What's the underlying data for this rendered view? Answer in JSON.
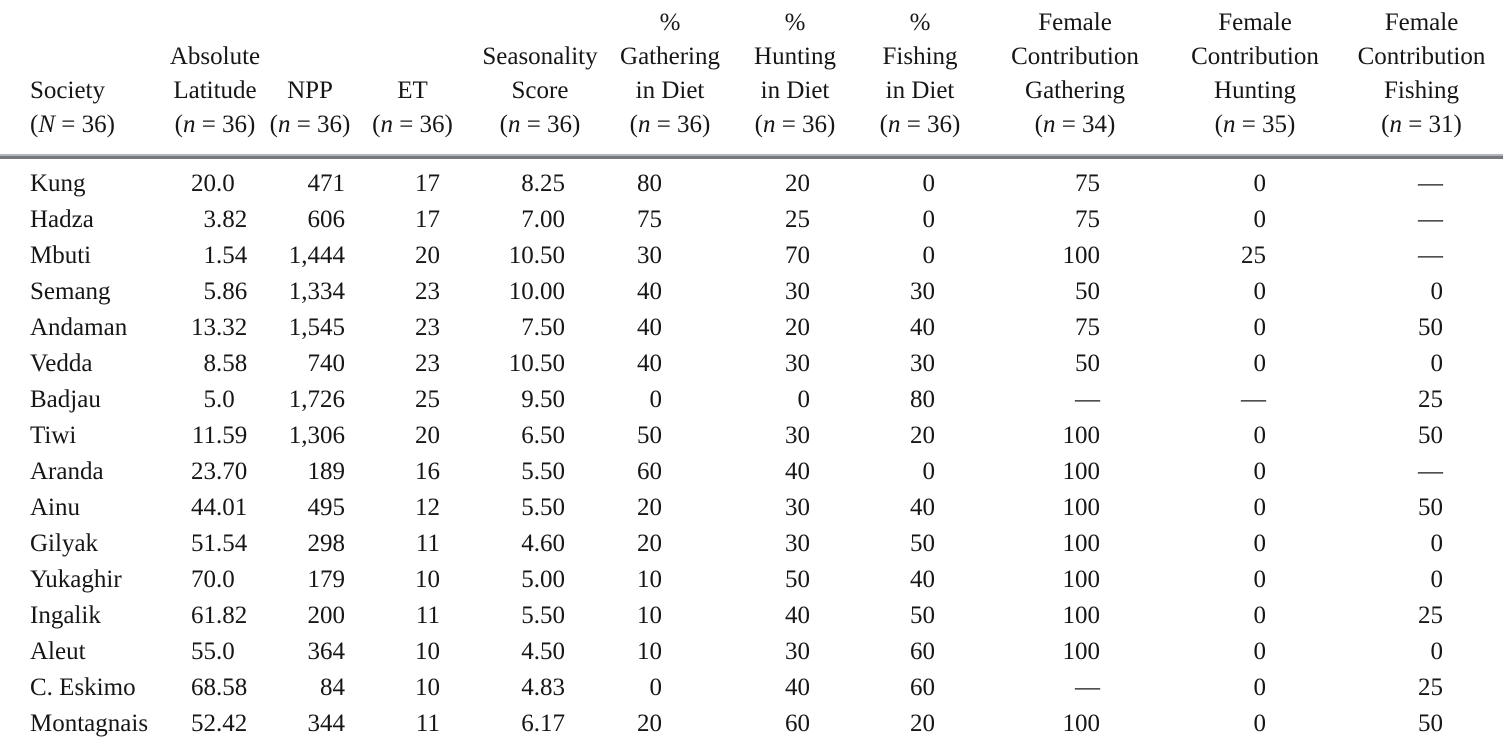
{
  "table": {
    "columns": [
      {
        "id": "society",
        "lines": [
          "Society",
          "(N = 36)"
        ]
      },
      {
        "id": "absolute-latitude",
        "lines": [
          "Absolute",
          "Latitude",
          "(n = 36)"
        ]
      },
      {
        "id": "npp",
        "lines": [
          "NPP",
          "(n = 36)"
        ]
      },
      {
        "id": "et",
        "lines": [
          "ET",
          "(n = 36)"
        ]
      },
      {
        "id": "seasonality-score",
        "lines": [
          "Seasonality",
          "Score",
          "(n = 36)"
        ]
      },
      {
        "id": "pct-gathering-diet",
        "lines": [
          "%",
          "Gathering",
          "in Diet",
          "(n = 36)"
        ]
      },
      {
        "id": "pct-hunting-diet",
        "lines": [
          "%",
          "Hunting",
          "in Diet",
          "(n = 36)"
        ]
      },
      {
        "id": "pct-fishing-diet",
        "lines": [
          "%",
          "Fishing",
          "in Diet",
          "(n = 36)"
        ]
      },
      {
        "id": "female-contribution-gathering",
        "lines": [
          "Female",
          "Contribution",
          "Gathering",
          "(n = 34)"
        ]
      },
      {
        "id": "female-contribution-hunting",
        "lines": [
          "Female",
          "Contribution",
          "Hunting",
          "(n = 35)"
        ]
      },
      {
        "id": "female-contribution-fishing",
        "lines": [
          "Female",
          "Contribution",
          "Fishing",
          "(n = 31)"
        ]
      }
    ],
    "rows": [
      [
        "Kung",
        "20.0",
        "471",
        "17",
        "8.25",
        "80",
        "20",
        "0",
        "75",
        "0",
        "—"
      ],
      [
        "Hadza",
        "3.82",
        "606",
        "17",
        "7.00",
        "75",
        "25",
        "0",
        "75",
        "0",
        "—"
      ],
      [
        "Mbuti",
        "1.54",
        "1,444",
        "20",
        "10.50",
        "30",
        "70",
        "0",
        "100",
        "25",
        "—"
      ],
      [
        "Semang",
        "5.86",
        "1,334",
        "23",
        "10.00",
        "40",
        "30",
        "30",
        "50",
        "0",
        "0"
      ],
      [
        "Andaman",
        "13.32",
        "1,545",
        "23",
        "7.50",
        "40",
        "20",
        "40",
        "75",
        "0",
        "50"
      ],
      [
        "Vedda",
        "8.58",
        "740",
        "23",
        "10.50",
        "40",
        "30",
        "30",
        "50",
        "0",
        "0"
      ],
      [
        "Badjau",
        "5.0",
        "1,726",
        "25",
        "9.50",
        "0",
        "0",
        "80",
        "—",
        "—",
        "25"
      ],
      [
        "Tiwi",
        "11.59",
        "1,306",
        "20",
        "6.50",
        "50",
        "30",
        "20",
        "100",
        "0",
        "50"
      ],
      [
        "Aranda",
        "23.70",
        "189",
        "16",
        "5.50",
        "60",
        "40",
        "0",
        "100",
        "0",
        "—"
      ],
      [
        "Ainu",
        "44.01",
        "495",
        "12",
        "5.50",
        "20",
        "30",
        "40",
        "100",
        "0",
        "50"
      ],
      [
        "Gilyak",
        "51.54",
        "298",
        "11",
        "4.60",
        "20",
        "30",
        "50",
        "100",
        "0",
        "0"
      ],
      [
        "Yukaghir",
        "70.0",
        "179",
        "10",
        "5.00",
        "10",
        "50",
        "40",
        "100",
        "0",
        "0"
      ],
      [
        "Ingalik",
        "61.82",
        "200",
        "11",
        "5.50",
        "10",
        "40",
        "50",
        "100",
        "0",
        "25"
      ],
      [
        "Aleut",
        "55.0",
        "364",
        "10",
        "4.50",
        "10",
        "30",
        "60",
        "100",
        "0",
        "0"
      ],
      [
        "C. Eskimo",
        "68.58",
        "84",
        "10",
        "4.83",
        "0",
        "40",
        "60",
        "—",
        "0",
        "25"
      ],
      [
        "Montagnais",
        "52.42",
        "344",
        "11",
        "6.17",
        "20",
        "60",
        "20",
        "100",
        "0",
        "50"
      ]
    ]
  }
}
